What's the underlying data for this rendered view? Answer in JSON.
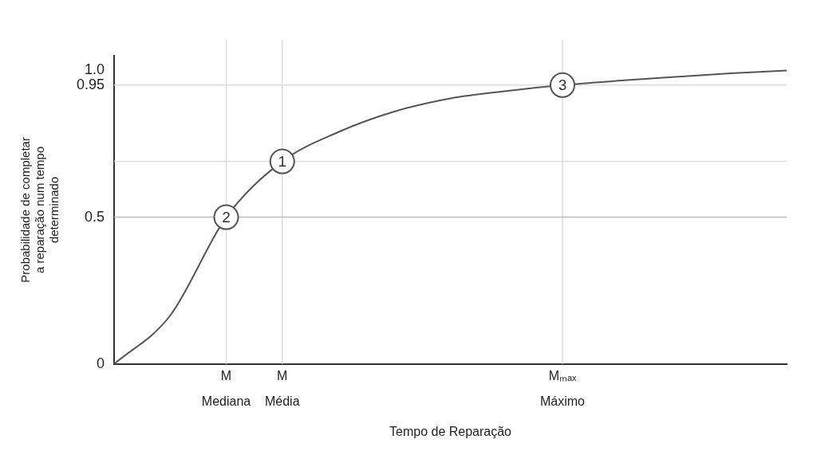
{
  "chart_data": {
    "type": "line",
    "xlabel": "Tempo de Reparação",
    "ylabel": "Probabilidade de completar a reparação num tempo determinado",
    "categories": [
      null,
      null,
      "M\nMediana",
      "M\nMédia",
      null,
      null,
      null,
      null,
      "Mₘₐₓ\nMáximo",
      null,
      null,
      null,
      null
    ],
    "series": [
      {
        "color": "#555555",
        "values": [
          0,
          0.165,
          0.5,
          0.69,
          0.79,
          0.86,
          0.905,
          0.93,
          0.95,
          0.965,
          0.978,
          0.99,
          1.0
        ]
      }
    ],
    "ylim": [
      0,
      1.05
    ],
    "yticks": [
      0,
      0.5,
      0.95,
      {
        "value": 1.0,
        "label": "1.0"
      }
    ],
    "marker": "none",
    "line_style": "solid",
    "ref_lines": [
      {
        "axis": "x",
        "value": "M\nMediana",
        "color": "#dddddd"
      },
      {
        "axis": "x",
        "value": "M\nMédia",
        "color": "#dddddd"
      },
      {
        "axis": "x",
        "value": "Mₘₐₓ\nMáximo",
        "color": "#dddddd"
      },
      {
        "axis": "y",
        "value": 0.95,
        "color": "#dddddd"
      },
      {
        "axis": "y",
        "value": 0.69,
        "color": "#dddddd"
      },
      {
        "axis": "y",
        "value": 0.5,
        "color": "#bbbbbb"
      }
    ],
    "annotations": [
      {
        "text": "1",
        "x": "M\nMédia",
        "y": 0.69
      },
      {
        "text": "2",
        "x": "M\nMediana",
        "y": 0.5
      },
      {
        "text": "3",
        "x": "Mₘₐₓ\nMáximo",
        "y": 0.95
      }
    ]
  }
}
